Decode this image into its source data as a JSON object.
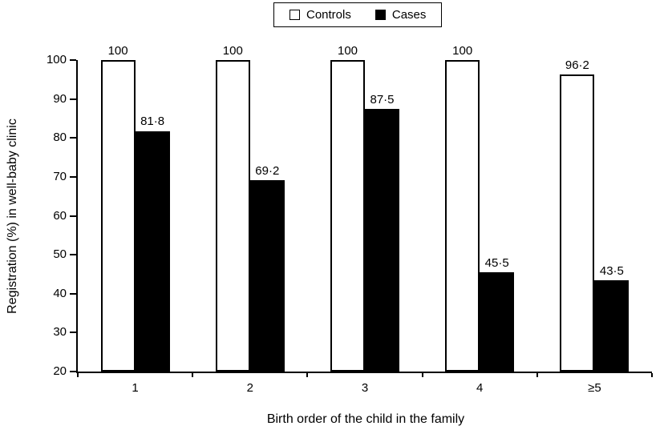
{
  "chart_data": {
    "type": "bar",
    "title": "",
    "xlabel": "Birth order of the child in the family",
    "ylabel": "Registration (%) in well-baby clinic",
    "categories": [
      "1",
      "2",
      "3",
      "4",
      "≥5"
    ],
    "series": [
      {
        "name": "Controls",
        "values": [
          100,
          100,
          100,
          100,
          96.2
        ],
        "value_labels": [
          "100",
          "100",
          "100",
          "100",
          "96·2"
        ],
        "fill": "#ffffff",
        "border": "#000000"
      },
      {
        "name": "Cases",
        "values": [
          81.8,
          69.2,
          87.5,
          45.5,
          43.5
        ],
        "value_labels": [
          "81·8",
          "69·2",
          "87·5",
          "45·5",
          "43·5"
        ],
        "fill": "#000000",
        "border": "#000000"
      }
    ],
    "ylim": [
      20,
      100
    ],
    "yticks": [
      20,
      30,
      40,
      50,
      60,
      70,
      80,
      90,
      100
    ],
    "grid": false,
    "legend_position": "top-center",
    "axis_color": "#000000",
    "background_color": "#ffffff"
  }
}
